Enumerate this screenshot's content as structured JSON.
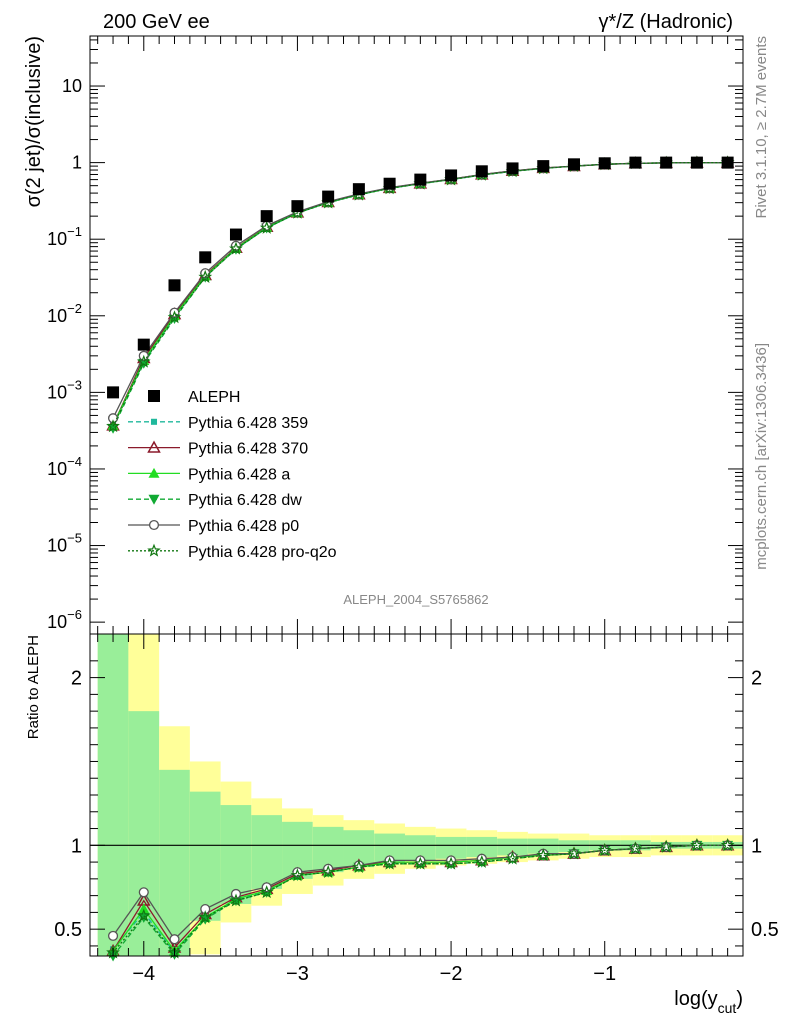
{
  "header": {
    "left": "200 GeV ee",
    "right": "γ*/Z (Hadronic)"
  },
  "side_labels": {
    "rivet": "Rivet 3.1.10, ≥ 2.7M events",
    "mcplots": "mcplots.cern.ch [arXiv:1306.3436]"
  },
  "watermark": "ALEPH_2004_S5765862",
  "axes": {
    "ylabel_top": "σ(2 jet)/σ(inclusive)",
    "ylabel_bottom": "Ratio to ALEPH",
    "xlabel_main": "log(y",
    "xlabel_sub": "cut",
    "xlabel_close": ")"
  },
  "chart_data": [
    {
      "type": "scatter",
      "panel": "main",
      "scale": "log",
      "xlim": [
        -4.35,
        -0.1
      ],
      "ylim": [
        7e-07,
        45
      ],
      "xticks": [
        -4,
        -3,
        -2,
        -1
      ],
      "xtick_labels": [
        "−4",
        "−3",
        "−2",
        "−1"
      ],
      "yticks": [
        1e-06,
        1e-05,
        0.0001,
        0.001,
        0.01,
        0.1,
        1,
        10
      ],
      "ytick_labels": [
        {
          "base": "10",
          "exp": "−6"
        },
        {
          "base": "10",
          "exp": "−5"
        },
        {
          "base": "10",
          "exp": "−4"
        },
        {
          "base": "10",
          "exp": "−3"
        },
        {
          "base": "10",
          "exp": "−2"
        },
        {
          "base": "10",
          "exp": "−1"
        },
        {
          "base": "1",
          "exp": ""
        },
        {
          "base": "10",
          "exp": ""
        }
      ],
      "x": [
        -4.2,
        -4.0,
        -3.8,
        -3.6,
        -3.4,
        -3.2,
        -3.0,
        -2.8,
        -2.6,
        -2.4,
        -2.2,
        -2.0,
        -1.8,
        -1.6,
        -1.4,
        -1.2,
        -1.0,
        -0.8,
        -0.6,
        -0.4,
        -0.2
      ],
      "series": [
        {
          "name": "ALEPH",
          "color": "#000000",
          "marker": "square",
          "line": "none",
          "values": [
            0.001,
            0.0042,
            0.025,
            0.058,
            0.115,
            0.2,
            0.27,
            0.36,
            0.45,
            0.53,
            0.6,
            0.68,
            0.77,
            0.84,
            0.9,
            0.95,
            0.98,
            1.0,
            1.0,
            1.0,
            1.0
          ]
        },
        {
          "name": "Pythia 6.428 359",
          "color": "#1fb89c",
          "marker": "small-square",
          "line": "dashed",
          "values": [
            0.00038,
            0.0025,
            0.0098,
            0.033,
            0.075,
            0.14,
            0.22,
            0.3,
            0.38,
            0.46,
            0.53,
            0.6,
            0.69,
            0.77,
            0.84,
            0.9,
            0.95,
            0.98,
            0.99,
            1.0,
            1.0
          ]
        },
        {
          "name": "Pythia 6.428 370",
          "color": "#8b1a2b",
          "marker": "open-triangle",
          "line": "solid",
          "values": [
            0.00037,
            0.0028,
            0.0105,
            0.034,
            0.077,
            0.145,
            0.223,
            0.305,
            0.385,
            0.467,
            0.535,
            0.61,
            0.7,
            0.78,
            0.85,
            0.9,
            0.95,
            0.98,
            0.99,
            1.0,
            1.0
          ]
        },
        {
          "name": "Pythia 6.428 a",
          "color": "#22dd22",
          "marker": "triangle",
          "line": "solid",
          "values": [
            0.00037,
            0.0026,
            0.01,
            0.033,
            0.076,
            0.143,
            0.222,
            0.303,
            0.383,
            0.465,
            0.533,
            0.608,
            0.698,
            0.778,
            0.848,
            0.9,
            0.95,
            0.98,
            0.99,
            1.0,
            1.0
          ]
        },
        {
          "name": "Pythia 6.428 dw",
          "color": "#11aa33",
          "marker": "down-triangle",
          "line": "dashed",
          "values": [
            0.00034,
            0.0024,
            0.0092,
            0.032,
            0.074,
            0.14,
            0.22,
            0.3,
            0.38,
            0.46,
            0.53,
            0.6,
            0.69,
            0.77,
            0.84,
            0.9,
            0.95,
            0.98,
            0.99,
            1.0,
            1.0
          ]
        },
        {
          "name": "Pythia 6.428 p0",
          "color": "#555555",
          "marker": "open-circle",
          "line": "solid",
          "values": [
            0.00046,
            0.003,
            0.011,
            0.036,
            0.082,
            0.15,
            0.227,
            0.31,
            0.39,
            0.47,
            0.54,
            0.61,
            0.7,
            0.78,
            0.85,
            0.9,
            0.95,
            0.98,
            0.99,
            1.0,
            1.0
          ]
        },
        {
          "name": "Pythia 6.428 pro-q2o",
          "color": "#117711",
          "marker": "open-star",
          "line": "dotted",
          "values": [
            0.00036,
            0.0025,
            0.0095,
            0.032,
            0.075,
            0.14,
            0.22,
            0.3,
            0.38,
            0.46,
            0.53,
            0.6,
            0.69,
            0.77,
            0.84,
            0.9,
            0.95,
            0.98,
            0.99,
            1.0,
            1.0
          ]
        }
      ],
      "legend_placement": "lower-left"
    },
    {
      "type": "line",
      "panel": "ratio",
      "scale": "linear",
      "xlim": [
        -4.35,
        -0.1
      ],
      "ylim": [
        0.34,
        2.26
      ],
      "yticks": [
        0.5,
        1,
        2
      ],
      "ytick_labels": [
        "0.5",
        "1",
        "2"
      ],
      "x": [
        -4.2,
        -4.0,
        -3.8,
        -3.6,
        -3.4,
        -3.2,
        -3.0,
        -2.8,
        -2.6,
        -2.4,
        -2.2,
        -2.0,
        -1.8,
        -1.6,
        -1.4,
        -1.2,
        -1.0,
        -0.8,
        -0.6,
        -0.4,
        -0.2
      ],
      "bin_edges": [
        -4.3,
        -4.1,
        -3.9,
        -3.7,
        -3.5,
        -3.3,
        -3.1,
        -2.9,
        -2.7,
        -2.5,
        -2.3,
        -2.1,
        -1.9,
        -1.7,
        -1.5,
        -1.3,
        -1.1,
        -0.9,
        -0.7,
        -0.5,
        -0.3,
        -0.1
      ],
      "band_inner": [
        [
          0.0,
          3.0
        ],
        [
          0.0,
          1.8
        ],
        [
          0.3,
          1.45
        ],
        [
          0.55,
          1.32
        ],
        [
          0.65,
          1.24
        ],
        [
          0.74,
          1.18
        ],
        [
          0.8,
          1.14
        ],
        [
          0.84,
          1.11
        ],
        [
          0.87,
          1.09
        ],
        [
          0.89,
          1.07
        ],
        [
          0.91,
          1.06
        ],
        [
          0.92,
          1.05
        ],
        [
          0.93,
          1.05
        ],
        [
          0.94,
          1.04
        ],
        [
          0.95,
          1.04
        ],
        [
          0.96,
          1.03
        ],
        [
          0.97,
          1.03
        ],
        [
          0.97,
          1.03
        ],
        [
          0.98,
          1.02
        ],
        [
          0.98,
          1.02
        ],
        [
          0.98,
          1.02
        ]
      ],
      "band_outer": [
        [
          0.0,
          3.0
        ],
        [
          0.0,
          3.0
        ],
        [
          0.0,
          1.71
        ],
        [
          0.35,
          1.5
        ],
        [
          0.54,
          1.38
        ],
        [
          0.64,
          1.28
        ],
        [
          0.71,
          1.22
        ],
        [
          0.76,
          1.18
        ],
        [
          0.8,
          1.15
        ],
        [
          0.83,
          1.13
        ],
        [
          0.86,
          1.11
        ],
        [
          0.88,
          1.1
        ],
        [
          0.89,
          1.09
        ],
        [
          0.9,
          1.08
        ],
        [
          0.91,
          1.07
        ],
        [
          0.92,
          1.07
        ],
        [
          0.93,
          1.06
        ],
        [
          0.93,
          1.06
        ],
        [
          0.94,
          1.06
        ],
        [
          0.94,
          1.06
        ],
        [
          0.94,
          1.06
        ]
      ],
      "band_colors": {
        "inner": "#99ee99",
        "outer": "#ffff99"
      },
      "reference_line": 1,
      "series": [
        {
          "name": "Pythia 6.428 359",
          "color": "#1fb89c",
          "marker": "small-square",
          "line": "dashed",
          "values": [
            0.38,
            0.6,
            0.36,
            0.57,
            0.67,
            0.73,
            0.82,
            0.84,
            0.87,
            0.89,
            0.89,
            0.89,
            0.9,
            0.92,
            0.94,
            0.95,
            0.97,
            0.98,
            0.99,
            1.0,
            1.0
          ]
        },
        {
          "name": "Pythia 6.428 370",
          "color": "#8b1a2b",
          "marker": "open-triangle",
          "line": "solid",
          "values": [
            0.37,
            0.67,
            0.39,
            0.59,
            0.69,
            0.74,
            0.83,
            0.85,
            0.88,
            0.9,
            0.9,
            0.9,
            0.91,
            0.93,
            0.94,
            0.95,
            0.97,
            0.98,
            0.99,
            1.0,
            1.0
          ]
        },
        {
          "name": "Pythia 6.428 a",
          "color": "#22dd22",
          "marker": "triangle",
          "line": "solid",
          "values": [
            0.37,
            0.62,
            0.37,
            0.57,
            0.68,
            0.73,
            0.82,
            0.84,
            0.87,
            0.9,
            0.9,
            0.9,
            0.91,
            0.93,
            0.94,
            0.95,
            0.97,
            0.98,
            0.99,
            1.0,
            1.0
          ]
        },
        {
          "name": "Pythia 6.428 dw",
          "color": "#11aa33",
          "marker": "down-triangle",
          "line": "dashed",
          "values": [
            0.34,
            0.57,
            0.35,
            0.56,
            0.67,
            0.72,
            0.82,
            0.84,
            0.87,
            0.89,
            0.89,
            0.89,
            0.9,
            0.92,
            0.94,
            0.95,
            0.97,
            0.98,
            0.99,
            1.0,
            1.0
          ]
        },
        {
          "name": "Pythia 6.428 p0",
          "color": "#555555",
          "marker": "open-circle",
          "line": "solid",
          "values": [
            0.46,
            0.72,
            0.44,
            0.62,
            0.71,
            0.75,
            0.84,
            0.86,
            0.88,
            0.91,
            0.91,
            0.91,
            0.92,
            0.93,
            0.95,
            0.95,
            0.97,
            0.98,
            0.99,
            1.0,
            1.0
          ]
        },
        {
          "name": "Pythia 6.428 pro-q2o",
          "color": "#117711",
          "marker": "open-star",
          "line": "dotted",
          "values": [
            0.36,
            0.58,
            0.36,
            0.57,
            0.67,
            0.72,
            0.82,
            0.84,
            0.87,
            0.89,
            0.89,
            0.89,
            0.9,
            0.92,
            0.94,
            0.95,
            0.97,
            0.98,
            0.99,
            1.0,
            1.0
          ]
        }
      ]
    }
  ]
}
